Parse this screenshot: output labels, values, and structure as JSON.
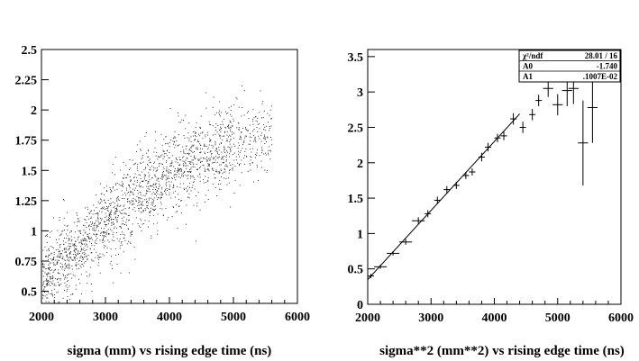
{
  "charts": [
    {
      "id": "left",
      "chart_data": {
        "type": "scatter",
        "title": "",
        "xlabel": "sigma (mm) vs rising edge time (ns)",
        "ylabel": "",
        "xlim": [
          2000,
          6000
        ],
        "ylim": [
          0.4,
          2.5
        ],
        "x_ticks": [
          2000,
          3000,
          4000,
          5000,
          6000
        ],
        "x_tick_labels": [
          "2000",
          "3000",
          "4000",
          "5000",
          "6000"
        ],
        "y_ticks": [
          0.5,
          0.75,
          1,
          1.25,
          1.5,
          1.75,
          2,
          2.25,
          2.5
        ],
        "y_tick_labels": [
          "0.5",
          "0.75",
          "1",
          "1.25",
          "1.5",
          "1.75",
          "2",
          "2.25",
          "2.5"
        ],
        "grid": false,
        "cloud": {
          "description_of_trend": "dense point cloud rising from about 0.6 at 2000 ns to about 1.7 at 5000 ns",
          "x_range": [
            2000,
            5600
          ],
          "centerline": [
            [
              2000,
              0.62
            ],
            [
              2500,
              0.8
            ],
            [
              3000,
              1.05
            ],
            [
              3500,
              1.3
            ],
            [
              4000,
              1.48
            ],
            [
              4500,
              1.63
            ],
            [
              5000,
              1.72
            ],
            [
              5500,
              1.8
            ]
          ],
          "spread": 0.17,
          "n_points": 2200
        }
      }
    },
    {
      "id": "right",
      "chart_data": {
        "type": "scatter",
        "title": "",
        "xlabel": "sigma**2 (mm**2) vs rising edge time (ns)",
        "ylabel": "",
        "xlim": [
          2000,
          6000
        ],
        "ylim": [
          0,
          3.6
        ],
        "x_ticks": [
          2000,
          3000,
          4000,
          5000,
          6000
        ],
        "x_tick_labels": [
          "2000",
          "3000",
          "4000",
          "5000",
          "6000"
        ],
        "y_ticks": [
          0,
          0.5,
          1,
          1.5,
          2,
          2.5,
          3,
          3.5
        ],
        "y_tick_labels": [
          "0",
          "0.5",
          "1",
          "1.5",
          "2",
          "2.5",
          "3",
          "3.5"
        ],
        "grid": false,
        "points": [
          {
            "x": 2050,
            "y": 0.4,
            "ex": 50,
            "ey": 0.03
          },
          {
            "x": 2200,
            "y": 0.53,
            "ex": 100,
            "ey": 0.03
          },
          {
            "x": 2400,
            "y": 0.72,
            "ex": 100,
            "ey": 0.03
          },
          {
            "x": 2600,
            "y": 0.88,
            "ex": 100,
            "ey": 0.04
          },
          {
            "x": 2800,
            "y": 1.18,
            "ex": 100,
            "ey": 0.05
          },
          {
            "x": 2950,
            "y": 1.28,
            "ex": 50,
            "ey": 0.05
          },
          {
            "x": 3100,
            "y": 1.47,
            "ex": 50,
            "ey": 0.05
          },
          {
            "x": 3250,
            "y": 1.62,
            "ex": 50,
            "ey": 0.05
          },
          {
            "x": 3400,
            "y": 1.68,
            "ex": 50,
            "ey": 0.05
          },
          {
            "x": 3550,
            "y": 1.82,
            "ex": 50,
            "ey": 0.05
          },
          {
            "x": 3650,
            "y": 1.87,
            "ex": 50,
            "ey": 0.05
          },
          {
            "x": 3800,
            "y": 2.08,
            "ex": 50,
            "ey": 0.06
          },
          {
            "x": 3900,
            "y": 2.22,
            "ex": 50,
            "ey": 0.06
          },
          {
            "x": 4050,
            "y": 2.35,
            "ex": 50,
            "ey": 0.06
          },
          {
            "x": 4150,
            "y": 2.38,
            "ex": 50,
            "ey": 0.06
          },
          {
            "x": 4300,
            "y": 2.62,
            "ex": 50,
            "ey": 0.08
          },
          {
            "x": 4450,
            "y": 2.5,
            "ex": 50,
            "ey": 0.08
          },
          {
            "x": 4600,
            "y": 2.68,
            "ex": 50,
            "ey": 0.08
          },
          {
            "x": 4700,
            "y": 2.88,
            "ex": 50,
            "ey": 0.08
          },
          {
            "x": 4850,
            "y": 3.05,
            "ex": 80,
            "ey": 0.12
          },
          {
            "x": 5000,
            "y": 2.82,
            "ex": 80,
            "ey": 0.15
          },
          {
            "x": 5150,
            "y": 3.02,
            "ex": 80,
            "ey": 0.22
          },
          {
            "x": 5250,
            "y": 3.05,
            "ex": 80,
            "ey": 0.22
          },
          {
            "x": 5400,
            "y": 2.28,
            "ex": 80,
            "ey": 0.6
          },
          {
            "x": 5550,
            "y": 2.78,
            "ex": 80,
            "ey": 0.5
          }
        ],
        "fit": {
          "x_start": 2000,
          "x_end": 4400,
          "intercept": -1.74,
          "slope": 0.001007
        },
        "stats_box": {
          "rows": [
            {
              "label": "χ²/ndf",
              "value": "28.01   /    16"
            },
            {
              "label": "A0",
              "value": "-1.740"
            },
            {
              "label": "A1",
              "value": ".1007E-02"
            }
          ]
        }
      }
    }
  ]
}
